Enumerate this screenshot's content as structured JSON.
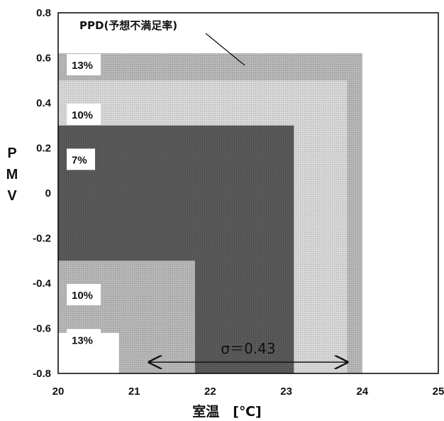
{
  "chart_data": {
    "type": "area",
    "title": "",
    "xlabel": "室温　[℃]",
    "ylabel": "PMV",
    "xlim": [
      20,
      25
    ],
    "ylim": [
      -0.8,
      0.8
    ],
    "x_ticks": [
      "20",
      "21",
      "22",
      "23",
      "24",
      "25"
    ],
    "y_ticks": [
      "0.8",
      "0.6",
      "0.4",
      "0.2",
      "0",
      "-0.2",
      "-0.4",
      "-0.6",
      "-0.8"
    ],
    "grid": false,
    "bands": [
      {
        "label": "13%",
        "x": [
          20,
          24
        ],
        "y": [
          -0.8,
          0.62
        ],
        "shape": "L",
        "x_inner": 20.8,
        "y_inner": -0.62,
        "color": "#b4b4b4"
      },
      {
        "label": "10%",
        "x": [
          20,
          23.8
        ],
        "y": [
          -0.8,
          0.5
        ],
        "shape": "L",
        "x_inner": 21.8,
        "y_inner": -0.3,
        "color": "#d2d2d2"
      },
      {
        "label": "7%",
        "x": [
          20,
          23.1
        ],
        "y": [
          -0.8,
          0.3
        ],
        "shape": "L",
        "x_inner": 21.8,
        "y_inner": -0.3,
        "color": "#575757"
      }
    ],
    "band_label_positions": [
      {
        "label": "13%",
        "y": 0.57
      },
      {
        "label": "10%",
        "y": 0.35
      },
      {
        "label": "7%",
        "y": 0.15
      },
      {
        "label": "10%",
        "y": -0.45
      },
      {
        "label": "13%",
        "y": -0.65
      }
    ],
    "annotations": [
      {
        "text": "PPD(予想不満足率)"
      },
      {
        "text": "σ＝0.43",
        "x_range": [
          21.2,
          23.8
        ],
        "y": -0.75
      }
    ]
  }
}
